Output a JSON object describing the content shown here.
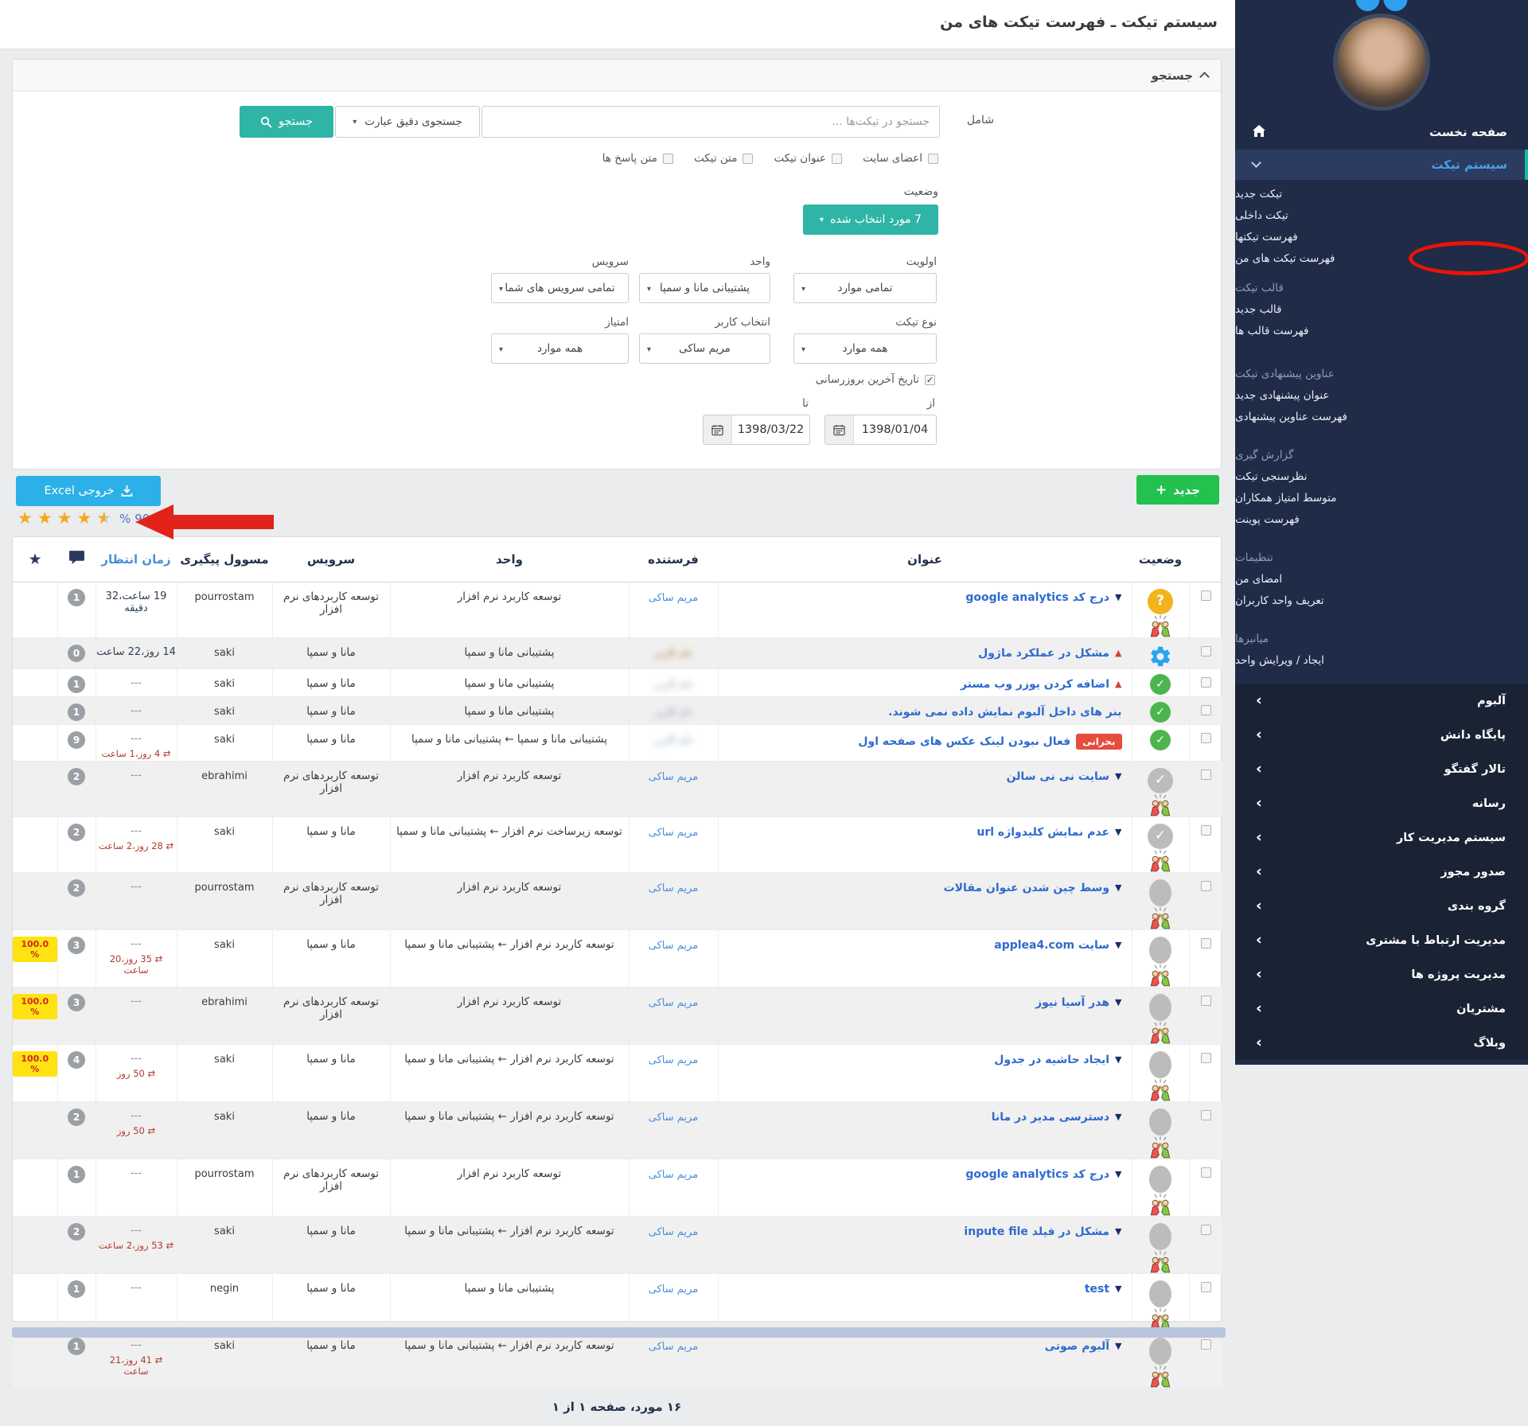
{
  "app": {
    "title": "سیستم تیکت ـ فهرست تیکت های من"
  },
  "colors": {
    "teal": "#2fb5a5",
    "green": "#23c14e",
    "excel_blue": "#2cb0e8",
    "link_blue": "#2f6bce",
    "annotation_red": "#ea1408",
    "critical_red": "#e74c3c",
    "percent_yellow": "#ffe212",
    "sidebar_accent": "#17b9a7"
  },
  "sidebar": {
    "items": [
      {
        "type": "home",
        "label": "صفحه نخست"
      },
      {
        "type": "active",
        "label": "سیستم تیکت"
      },
      {
        "type": "link",
        "label": "تیکت جدید"
      },
      {
        "type": "link",
        "label": "تیکت داخلی"
      },
      {
        "type": "link",
        "label": "فهرست تیکتها"
      },
      {
        "type": "link",
        "label": "فهرست تیکت های من",
        "annotated": true
      },
      {
        "type": "section",
        "label": "قالب تیکت",
        "gap": "sm"
      },
      {
        "type": "link",
        "label": "قالب جدید"
      },
      {
        "type": "link",
        "label": "فهرست قالب ها"
      },
      {
        "type": "section",
        "label": "عناوین پیشنهادی تیکت",
        "gap": "lg"
      },
      {
        "type": "link",
        "label": "عنوان پیشنهادی جدید"
      },
      {
        "type": "link",
        "label": "فهرست عناوین پیشنهادی"
      },
      {
        "type": "section",
        "label": "گزارش گیری",
        "gap": "md"
      },
      {
        "type": "link",
        "label": "نظرسنجی تیکت"
      },
      {
        "type": "link",
        "label": "متوسط امتیاز همکاران"
      },
      {
        "type": "link",
        "label": "فهرست پوینت"
      },
      {
        "type": "section",
        "label": "تنظیمات",
        "gap": "md"
      },
      {
        "type": "link",
        "label": "امضای من"
      },
      {
        "type": "link",
        "label": "تعریف واحد کاربران"
      },
      {
        "type": "section",
        "label": "میانبرها",
        "gap": "md"
      },
      {
        "type": "link",
        "label": "ایجاد / ویرایش واحد"
      }
    ],
    "collapsed": [
      "آلبوم",
      "پایگاه دانش",
      "تالار گفتگو",
      "رسانه",
      "سیستم مدیریت کار",
      "صدور مجوز",
      "گروه بندی",
      "مدیریت ارتباط با مشتری",
      "مدیریت پروژه ها",
      "مشتریان",
      "وبلاگ"
    ]
  },
  "search": {
    "header": "جستجو",
    "include_label": "شامل",
    "input_placeholder": "جستجو در تیکت‌ها ...",
    "mode_value": "جستجوی دقیق عبارت",
    "button": "جستجو",
    "checkboxes": [
      {
        "label": "اعضای سایت",
        "checked": false
      },
      {
        "label": "عنوان تیکت",
        "checked": false
      },
      {
        "label": "متن تیکت",
        "checked": false
      },
      {
        "label": "متن پاسخ ها",
        "checked": false
      }
    ],
    "status_label": "وضعیت",
    "status_button": "7 مورد انتخاب شده",
    "filters": [
      {
        "row": 1,
        "col": 1,
        "label": "اولویت",
        "value": "تمامی موارد"
      },
      {
        "row": 1,
        "col": 2,
        "label": "واحد",
        "value": "پشتیبانی مانا و سمپا"
      },
      {
        "row": 1,
        "col": 3,
        "label": "سرویس",
        "value": "تمامی سرویس های شما"
      },
      {
        "row": 2,
        "col": 1,
        "label": "نوع تیکت",
        "value": "همه موارد"
      },
      {
        "row": 2,
        "col": 2,
        "label": "انتخاب کاربر",
        "value": "مریم ساکی"
      },
      {
        "row": 2,
        "col": 3,
        "label": "امتیاز",
        "value": "همه موارد"
      }
    ],
    "date_filter": {
      "label": "تاریخ آخرین بروزرسانی",
      "checked": true,
      "from_label": "از",
      "from_value": "1398/01/04",
      "to_label": "تا",
      "to_value": "1398/03/22"
    }
  },
  "toolbar": {
    "new_button": "جدید",
    "excel_button": "خروجی Excel",
    "rating_value": "% 90.4",
    "rating_stars": 4.5
  },
  "table": {
    "columns": {
      "status": "وضعیت",
      "title": "عنوان",
      "sender": "فرستنده",
      "unit": "واحد",
      "service": "سرویس",
      "assignee": "مسوول پیگیری",
      "wait": "زمان انتظار"
    },
    "critical_badge": "بحرانی",
    "rows": [
      {
        "h": "tall",
        "status": "question",
        "highfive": true,
        "marker": "down",
        "critical": false,
        "title": "درج کد google analytics",
        "sender": "مریم ساکی",
        "sender_redacted": false,
        "unit": "توسعه کاربرد نرم افزار",
        "service": "توسعه کاربردهای نرم افزار",
        "assignee": "pourrostam",
        "wait": "19 ساعت،32 دقیقه",
        "wait_red": null,
        "comments": "1",
        "percent": null
      },
      {
        "h": "short",
        "status": "gear",
        "highfive": false,
        "marker": "up",
        "critical": false,
        "title": "مشکل در عملکرد ماژول",
        "sender": "",
        "sender_redacted": true,
        "sender_color": "#b5722a",
        "unit": "پشتیبانی مانا و سمپا",
        "service": "مانا و سمپا",
        "assignee": "saki",
        "wait": "14 روز،22 ساعت",
        "wait_red": null,
        "comments": "0",
        "percent": null
      },
      {
        "h": "short",
        "status": "check-green",
        "highfive": false,
        "marker": "up",
        "critical": false,
        "title": "اضافه کردن یوزر وب مستر",
        "sender": "",
        "sender_redacted": true,
        "sender_color": "#9a9a9a",
        "unit": "پشتیبانی مانا و سمپا",
        "service": "مانا و سمپا",
        "assignee": "saki",
        "wait": "---",
        "wait_red": null,
        "comments": "1",
        "percent": null
      },
      {
        "h": "short",
        "status": "check-green",
        "highfive": false,
        "marker": "none",
        "critical": false,
        "title": "بنر های داخل آلبوم نمایش داده نمی شوند.",
        "sender": "",
        "sender_redacted": true,
        "sender_color": "#8794a8",
        "unit": "پشتیبانی مانا و سمپا",
        "service": "مانا و سمپا",
        "assignee": "saki",
        "wait": "---",
        "wait_red": null,
        "comments": "1",
        "percent": null
      },
      {
        "h": "med",
        "status": "check-green",
        "highfive": false,
        "marker": "none",
        "critical": true,
        "title": "فعال نبودن لینک عکس های صفحه اول",
        "sender": "",
        "sender_redacted": true,
        "sender_color": "#8aa0b8",
        "unit": "پشتیبانی مانا و سمپا ← پشتیبانی مانا و سمپا",
        "service": "مانا و سمپا",
        "assignee": "saki",
        "wait": "---",
        "wait_red": "4 روز،1 ساعت",
        "comments": "9",
        "percent": null
      },
      {
        "h": "tall",
        "status": "check-gray",
        "highfive": true,
        "marker": "down",
        "critical": false,
        "title": "سایت نی نی سالن",
        "sender": "مریم ساکی",
        "sender_redacted": false,
        "unit": "توسعه کاربرد نرم افزار",
        "service": "توسعه کاربردهای نرم افزار",
        "assignee": "ebrahimi",
        "wait": "---",
        "wait_red": null,
        "comments": "2",
        "percent": null
      },
      {
        "h": "tall",
        "status": "check-gray",
        "highfive": true,
        "marker": "down",
        "critical": false,
        "title": "عدم نمایش کلیدواژه url",
        "sender": "مریم ساکی",
        "sender_redacted": false,
        "unit": "توسعه زیرساخت نرم افزار ← پشتیبانی مانا و سمپا",
        "service": "مانا و سمپا",
        "assignee": "saki",
        "wait": "---",
        "wait_red": "28 روز،2 ساعت",
        "comments": "2",
        "percent": null
      },
      {
        "h": "tall",
        "status": "circle-gray",
        "highfive": true,
        "marker": "down",
        "critical": false,
        "title": "وسط چین شدن عنوان مقالات",
        "sender": "مریم ساکی",
        "sender_redacted": false,
        "unit": "توسعه کاربرد نرم افزار",
        "service": "توسعه کاربردهای نرم افزار",
        "assignee": "pourrostam",
        "wait": "---",
        "wait_red": null,
        "comments": "2",
        "percent": null
      },
      {
        "h": "tall",
        "status": "circle-gray",
        "highfive": true,
        "marker": "down",
        "critical": false,
        "title": "سایت applea4.com",
        "sender": "مریم ساکی",
        "sender_redacted": false,
        "unit": "توسعه کاربرد نرم افزار ← پشتیبانی مانا و سمپا",
        "service": "مانا و سمپا",
        "assignee": "saki",
        "wait": "---",
        "wait_red": "35 روز،20 ساعت",
        "comments": "3",
        "percent": "100.0 %"
      },
      {
        "h": "tall",
        "status": "circle-gray",
        "highfive": true,
        "marker": "down",
        "critical": false,
        "title": "هدر آسیا نیوز",
        "sender": "مریم ساکی",
        "sender_redacted": false,
        "unit": "توسعه کاربرد نرم افزار",
        "service": "توسعه کاربردهای نرم افزار",
        "assignee": "ebrahimi",
        "wait": "---",
        "wait_red": null,
        "comments": "3",
        "percent": "100.0 %"
      },
      {
        "h": "tall",
        "status": "circle-gray",
        "highfive": true,
        "marker": "down",
        "critical": false,
        "title": "ایجاد حاشیه در جدول",
        "sender": "مریم ساکی",
        "sender_redacted": false,
        "unit": "توسعه کاربرد نرم افزار ← پشتیبانی مانا و سمپا",
        "service": "مانا و سمپا",
        "assignee": "saki",
        "wait": "---",
        "wait_red": "50 روز",
        "comments": "4",
        "percent": "100.0 %"
      },
      {
        "h": "tall",
        "status": "circle-gray",
        "highfive": true,
        "marker": "down",
        "critical": false,
        "title": "دسترسی مدیر در مانا",
        "sender": "مریم ساکی",
        "sender_redacted": false,
        "unit": "توسعه کاربرد نرم افزار ← پشتیبانی مانا و سمپا",
        "service": "مانا و سمپا",
        "assignee": "saki",
        "wait": "---",
        "wait_red": "50 روز",
        "comments": "2",
        "percent": null
      },
      {
        "h": "tall",
        "status": "circle-gray",
        "highfive": true,
        "marker": "down",
        "critical": false,
        "title": "درج کد google analytics",
        "sender": "مریم ساکی",
        "sender_redacted": false,
        "unit": "توسعه کاربرد نرم افزار",
        "service": "توسعه کاربردهای نرم افزار",
        "assignee": "pourrostam",
        "wait": "---",
        "wait_red": null,
        "comments": "1",
        "percent": null
      },
      {
        "h": "tall",
        "status": "circle-gray",
        "highfive": true,
        "marker": "down",
        "critical": false,
        "title": "مشکل در فیلد inpute file",
        "sender": "مریم ساکی",
        "sender_redacted": false,
        "unit": "توسعه کاربرد نرم افزار ← پشتیبانی مانا و سمپا",
        "service": "مانا و سمپا",
        "assignee": "saki",
        "wait": "---",
        "wait_red": "53 روز،2 ساعت",
        "comments": "2",
        "percent": null
      },
      {
        "h": "tall",
        "status": "circle-gray",
        "highfive": true,
        "marker": "down",
        "critical": false,
        "title": "test",
        "sender": "مریم ساکی",
        "sender_redacted": false,
        "unit": "پشتیبانی مانا و سمپا",
        "service": "مانا و سمپا",
        "assignee": "negin",
        "wait": "---",
        "wait_red": null,
        "comments": "1",
        "percent": null
      },
      {
        "h": "tall",
        "status": "circle-gray",
        "highfive": true,
        "marker": "down",
        "critical": false,
        "title": "آلبوم صوتی",
        "sender": "مریم ساکی",
        "sender_redacted": false,
        "unit": "توسعه کاربرد نرم افزار ← پشتیبانی مانا و سمپا",
        "service": "مانا و سمپا",
        "assignee": "saki",
        "wait": "---",
        "wait_red": "41 روز،21 ساعت",
        "comments": "1",
        "percent": null
      }
    ],
    "footer": "۱۶ مورد، صفحه ۱ از ۱"
  }
}
